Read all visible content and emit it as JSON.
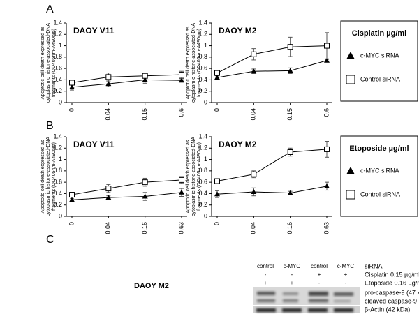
{
  "panels": [
    "A",
    "B",
    "C"
  ],
  "chart_data": [
    {
      "type": "line",
      "title": "DAOY V11",
      "categories": [
        "0",
        "0.04",
        "0.15",
        "0.6"
      ],
      "ylabel": [
        "Apoptotic cell death expressed as",
        "cytoplasmic histone-associated-DNA",
        "fragments (OD405nm-A490nm)"
      ],
      "ylim": [
        0,
        1.4
      ],
      "yticks": [
        0,
        0.2,
        0.4,
        0.6,
        0.8,
        1,
        1.2,
        1.4
      ],
      "series": [
        {
          "marker": "triangle",
          "color": "#000000",
          "values": [
            0.27,
            0.33,
            0.4,
            0.39
          ],
          "errors": [
            0.05,
            0.05,
            0.06,
            0.03
          ]
        },
        {
          "marker": "square",
          "color": "#000000",
          "values": [
            0.35,
            0.45,
            0.47,
            0.49
          ],
          "errors": [
            0.04,
            0.07,
            0.04,
            0.06
          ]
        }
      ]
    },
    {
      "type": "line",
      "title": "DAOY M2",
      "categories": [
        "0",
        "0.04",
        "0.15",
        "0.6"
      ],
      "ylabel": [
        "Apoptotic cell death expressed as",
        "cytoplasmic histone-associated-DNA",
        "fragments (OD405nm-A490nm)"
      ],
      "ylim": [
        0,
        1.4
      ],
      "yticks": [
        0,
        0.2,
        0.4,
        0.6,
        0.8,
        1,
        1.2,
        1.4
      ],
      "series": [
        {
          "marker": "triangle",
          "color": "#000000",
          "values": [
            0.44,
            0.55,
            0.56,
            0.74
          ],
          "errors": [
            0.03,
            0.04,
            0.05,
            0.02
          ]
        },
        {
          "marker": "square",
          "color": "#000000",
          "values": [
            0.52,
            0.85,
            0.98,
            1.0
          ],
          "errors": [
            0.03,
            0.1,
            0.17,
            0.23
          ]
        }
      ]
    },
    {
      "type": "line",
      "title": "DAOY V11",
      "categories": [
        "0",
        "0.04",
        "0.16",
        "0.63"
      ],
      "ylabel": [
        "Apoptotic cell death expressed as",
        "cytoplasmic histone-associated-DNA",
        "fragments (OD405nm-A490nm)"
      ],
      "ylim": [
        0,
        1.4
      ],
      "yticks": [
        0,
        0.2,
        0.4,
        0.6,
        0.8,
        1,
        1.2,
        1.4
      ],
      "series": [
        {
          "marker": "triangle",
          "color": "#000000",
          "values": [
            0.29,
            0.33,
            0.35,
            0.42
          ],
          "errors": [
            0.02,
            0.03,
            0.07,
            0.07
          ]
        },
        {
          "marker": "square",
          "color": "#000000",
          "values": [
            0.38,
            0.49,
            0.6,
            0.64
          ],
          "errors": [
            0.03,
            0.07,
            0.07,
            0.06
          ]
        }
      ]
    },
    {
      "type": "line",
      "title": "DAOY M2",
      "categories": [
        "0",
        "0.04",
        "0.16",
        "0.63"
      ],
      "ylabel": [
        "Apoptotic cell death expressed as",
        "cytoplasmic histone-associated-DNA",
        "fragments (OD405nm-A490nm)"
      ],
      "ylim": [
        0,
        1.4
      ],
      "yticks": [
        0,
        0.2,
        0.4,
        0.6,
        0.8,
        1,
        1.2,
        1.4
      ],
      "series": [
        {
          "marker": "triangle",
          "color": "#000000",
          "values": [
            0.39,
            0.43,
            0.41,
            0.53
          ],
          "errors": [
            0.06,
            0.07,
            0.03,
            0.07
          ]
        },
        {
          "marker": "square",
          "color": "#000000",
          "values": [
            0.62,
            0.74,
            1.13,
            1.18
          ],
          "errors": [
            0.03,
            0.06,
            0.07,
            0.14
          ]
        }
      ]
    }
  ],
  "legends": [
    {
      "title": "Cisplatin µg/ml",
      "entries": [
        "c-MYC siRNA",
        "Control siRNA"
      ]
    },
    {
      "title": "Etoposide µg/ml",
      "entries": [
        "c-MYC siRNA",
        "Control siRNA"
      ]
    }
  ],
  "blot": {
    "cell_line": "DAOY M2",
    "rows": [
      {
        "cells": [
          "control",
          "c-MYC",
          "control",
          "c-MYC"
        ],
        "label": "siRNA"
      },
      {
        "cells": [
          "-",
          "-",
          "+",
          "+"
        ],
        "label": "Cisplatin 0.15 µg/ml"
      },
      {
        "cells": [
          "+",
          "+",
          "-",
          "-"
        ],
        "label": "Etoposide 0.16 µg/ml"
      }
    ],
    "bands": [
      "pro-caspase-9 (47 kDa)",
      "cleaved caspase-9 (37 kDa)",
      "β-Actin (42 kDa)"
    ]
  }
}
